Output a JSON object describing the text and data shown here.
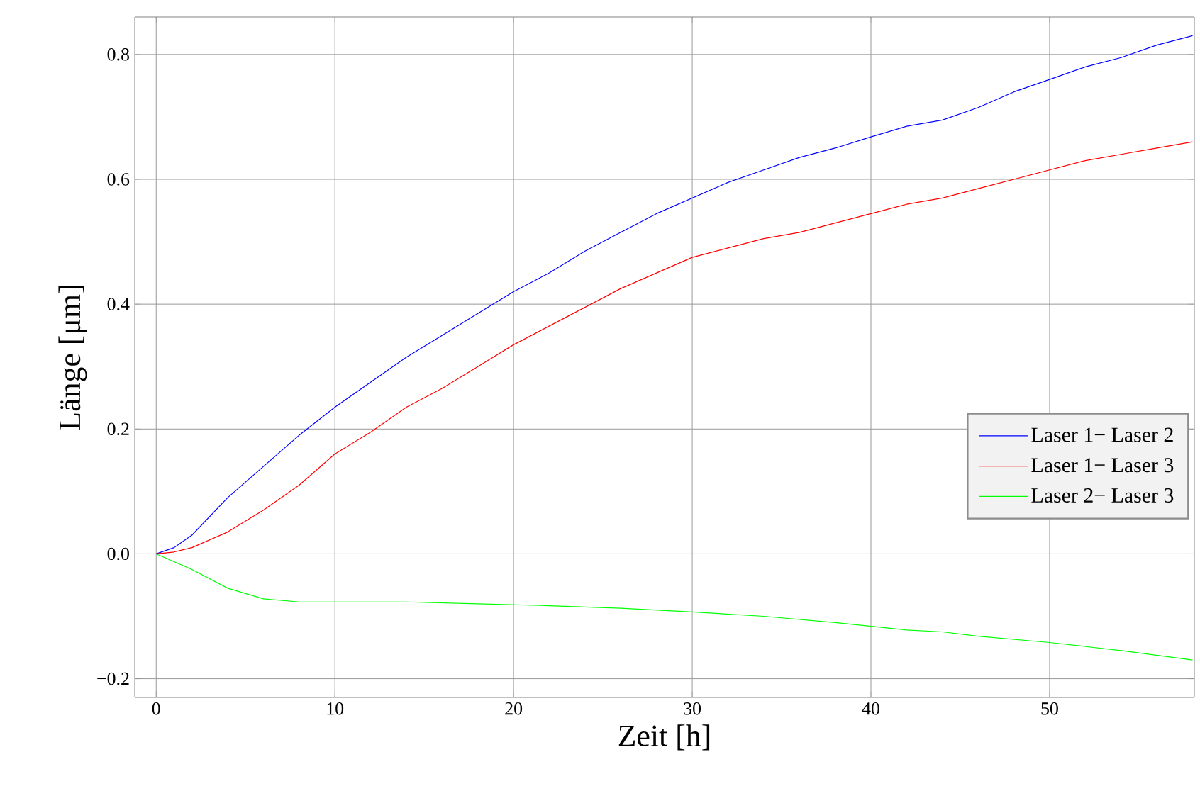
{
  "chart_data": {
    "type": "line",
    "xlabel": "Zeit [h]",
    "ylabel": "Länge  [μm]",
    "xlim": [
      -1.2,
      58.1
    ],
    "ylim": [
      -0.23,
      0.86
    ],
    "xticks": [
      0,
      10,
      20,
      30,
      40,
      50
    ],
    "yticks": [
      {
        "value": -0.2,
        "label": "−0.2"
      },
      {
        "value": 0,
        "label": "0.0"
      },
      {
        "value": 0.2,
        "label": "0.2"
      },
      {
        "value": 0.4,
        "label": "0.4"
      },
      {
        "value": 0.6,
        "label": "0.6"
      },
      {
        "value": 0.8,
        "label": "0.8"
      }
    ],
    "grid": true,
    "legend": "right",
    "marker": "none",
    "line_style": "solid",
    "series": [
      {
        "name": "Laser 1− Laser 2",
        "color": "#0000ff",
        "x": [
          0,
          1,
          2,
          4,
          6,
          8,
          10,
          12,
          14,
          16,
          18,
          20,
          22,
          24,
          26,
          28,
          30,
          32,
          34,
          36,
          38,
          40,
          42,
          44,
          46,
          48,
          50,
          52,
          54,
          56,
          58
        ],
        "values": [
          0,
          0.01,
          0.03,
          0.09,
          0.14,
          0.19,
          0.235,
          0.275,
          0.315,
          0.35,
          0.385,
          0.42,
          0.45,
          0.485,
          0.515,
          0.545,
          0.57,
          0.595,
          0.615,
          0.635,
          0.65,
          0.668,
          0.685,
          0.695,
          0.715,
          0.74,
          0.76,
          0.78,
          0.795,
          0.815,
          0.83
        ]
      },
      {
        "name": "Laser 1− Laser 3",
        "color": "#ff0000",
        "x": [
          0,
          1,
          2,
          4,
          6,
          8,
          10,
          12,
          14,
          16,
          18,
          20,
          22,
          24,
          26,
          28,
          30,
          32,
          34,
          36,
          38,
          40,
          42,
          44,
          46,
          48,
          50,
          52,
          54,
          56,
          58
        ],
        "values": [
          0,
          0.003,
          0.01,
          0.035,
          0.07,
          0.11,
          0.16,
          0.195,
          0.235,
          0.265,
          0.3,
          0.335,
          0.365,
          0.395,
          0.425,
          0.45,
          0.475,
          0.49,
          0.505,
          0.515,
          0.53,
          0.545,
          0.56,
          0.57,
          0.585,
          0.6,
          0.615,
          0.63,
          0.64,
          0.65,
          0.66
        ]
      },
      {
        "name": "Laser 2− Laser 3",
        "color": "#00ff00",
        "x": [
          0,
          2,
          4,
          6,
          8,
          10,
          14,
          18,
          22,
          26,
          30,
          34,
          38,
          42,
          44,
          46,
          50,
          54,
          58
        ],
        "values": [
          0,
          -0.025,
          -0.055,
          -0.072,
          -0.077,
          -0.077,
          -0.077,
          -0.08,
          -0.083,
          -0.087,
          -0.093,
          -0.1,
          -0.11,
          -0.122,
          -0.125,
          -0.132,
          -0.142,
          -0.155,
          -0.17
        ]
      }
    ]
  }
}
